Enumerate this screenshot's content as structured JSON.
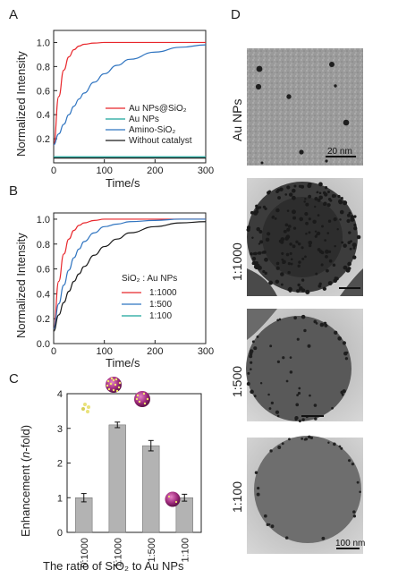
{
  "panels": {
    "A": {
      "label": "A",
      "ylabel": "Normalized Intensity",
      "xlabel": "Time/s",
      "legend": [
        "Au NPs@SiO₂",
        "Au NPs",
        "Amino-SiO₂",
        "Without catalyst"
      ]
    },
    "B": {
      "label": "B",
      "ylabel": "Normalized Intensity",
      "xlabel": "Time/s",
      "legend_title": "SiO₂ : Au NPs",
      "legend": [
        "1:1000",
        "1:500",
        "1:100"
      ]
    },
    "C": {
      "label": "C",
      "ylabel_pre": "Enhancement (",
      "ylabel_italic": "n",
      "ylabel_post": "-fold)",
      "xlabel": "The ratio of SiO₂ to Au NPs"
    },
    "D": {
      "label": "D",
      "rows": [
        {
          "label": "Au NPs",
          "scale_text": "20 nm"
        },
        {
          "label": "1:1000",
          "scale_text": ""
        },
        {
          "label": "1:500",
          "scale_text": ""
        },
        {
          "label": "1:100",
          "scale_text": "100 nm"
        }
      ]
    }
  },
  "colors": {
    "red": "#e8262b",
    "blue": "#2f74c0",
    "teal": "#19a59a",
    "black": "#1a1a1a",
    "bar": "#b3b3b3"
  },
  "chart_data": [
    {
      "type": "line",
      "panel": "A",
      "xlabel": "Time/s",
      "ylabel": "Normalized Intensity",
      "xlim": [
        0,
        300
      ],
      "ylim": [
        0,
        1.1
      ],
      "xticks": [
        0,
        100,
        200,
        300
      ],
      "yticks": [
        0.2,
        0.4,
        0.6,
        0.8,
        1.0
      ],
      "x": [
        0,
        10,
        20,
        30,
        40,
        50,
        60,
        80,
        100,
        125,
        150,
        200,
        250,
        300
      ],
      "series": [
        {
          "name": "Au NPs@SiO₂",
          "color": "#e8262b",
          "values": [
            0.15,
            0.55,
            0.77,
            0.88,
            0.94,
            0.97,
            0.985,
            0.995,
            1.0,
            1.0,
            1.0,
            1.0,
            1.0,
            1.0
          ]
        },
        {
          "name": "Au NPs",
          "color": "#19a59a",
          "values": [
            0.05,
            0.05,
            0.05,
            0.05,
            0.05,
            0.05,
            0.05,
            0.05,
            0.05,
            0.05,
            0.05,
            0.05,
            0.05,
            0.05
          ]
        },
        {
          "name": "Amino-SiO₂",
          "color": "#2f74c0",
          "values": [
            0.15,
            0.24,
            0.32,
            0.4,
            0.47,
            0.53,
            0.58,
            0.67,
            0.74,
            0.81,
            0.86,
            0.92,
            0.96,
            0.98
          ]
        },
        {
          "name": "Without catalyst",
          "color": "#1a1a1a",
          "values": [
            0.04,
            0.04,
            0.04,
            0.04,
            0.04,
            0.04,
            0.04,
            0.04,
            0.04,
            0.04,
            0.04,
            0.04,
            0.04,
            0.04
          ]
        }
      ],
      "legend_position": "bottom-right"
    },
    {
      "type": "line",
      "panel": "B",
      "xlabel": "Time/s",
      "ylabel": "Normalized Intensity",
      "xlim": [
        0,
        300
      ],
      "ylim": [
        0,
        1.05
      ],
      "xticks": [
        0,
        100,
        200,
        300
      ],
      "yticks": [
        0.0,
        0.2,
        0.4,
        0.6,
        0.8,
        1.0
      ],
      "x": [
        0,
        10,
        20,
        30,
        40,
        50,
        60,
        80,
        100,
        125,
        150,
        200,
        250,
        300
      ],
      "series": [
        {
          "name": "1:1000",
          "color": "#e8262b",
          "values": [
            0.12,
            0.5,
            0.72,
            0.84,
            0.91,
            0.95,
            0.97,
            0.99,
            1.0,
            1.0,
            1.0,
            1.0,
            1.0,
            1.0
          ]
        },
        {
          "name": "1:500",
          "color": "#2f74c0",
          "values": [
            0.12,
            0.32,
            0.47,
            0.59,
            0.69,
            0.76,
            0.82,
            0.89,
            0.94,
            0.96,
            0.98,
            0.99,
            1.0,
            1.0
          ]
        },
        {
          "name": "1:100",
          "color": "#1a1a1a",
          "values": [
            0.1,
            0.23,
            0.33,
            0.42,
            0.5,
            0.56,
            0.62,
            0.71,
            0.78,
            0.84,
            0.89,
            0.94,
            0.97,
            0.98
          ]
        }
      ],
      "legend_position": "bottom-right"
    },
    {
      "type": "bar",
      "panel": "C",
      "xlabel": "The ratio of SiO₂ to Au NPs",
      "ylabel": "Enhancement (n-fold)",
      "categories": [
        "0:1000",
        "1:1000",
        "1:500",
        "1:100"
      ],
      "values": [
        1.0,
        3.1,
        2.5,
        1.0
      ],
      "errors": [
        0.12,
        0.08,
        0.15,
        0.1
      ],
      "ylim": [
        0,
        4
      ],
      "yticks": [
        0,
        1,
        2,
        3,
        4
      ]
    }
  ]
}
